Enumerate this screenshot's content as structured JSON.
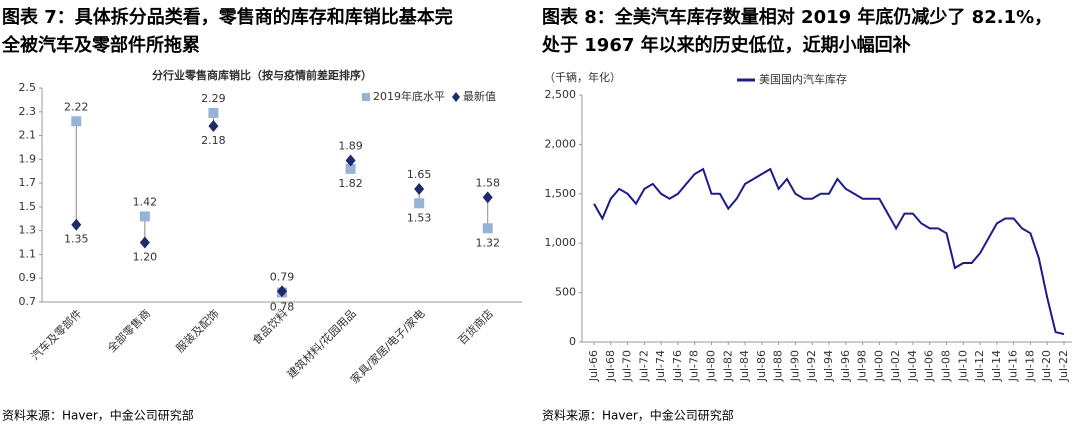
{
  "chart_data": [
    {
      "type": "dumbbell",
      "title": [
        "图表 7：具体拆分品类看，零售商的库存和库销比基本完",
        "全被汽车及零部件所拖累"
      ],
      "subtitle": "分行业零售商库销比（按与疫情前差距排序）",
      "source": "资料来源：Haver，中金公司研究部",
      "categories": [
        "汽车及零部件",
        "全部零售商",
        "服装及配饰",
        "食品饮料",
        "建筑材料/花园用品",
        "家具/家居/电子/家电",
        "百货商店"
      ],
      "series": [
        {
          "name": "2019年底水平",
          "color": "#95b3d7",
          "marker": "square",
          "values": [
            2.22,
            1.42,
            2.29,
            0.78,
            1.82,
            1.53,
            1.32
          ],
          "value_labels": [
            "2.22",
            "1.42",
            "2.29",
            "0.78",
            "1.82",
            "1.53",
            "1.32"
          ]
        },
        {
          "name": "最新值",
          "color": "#1f2a6b",
          "marker": "diamond",
          "values": [
            1.35,
            1.2,
            2.18,
            0.79,
            1.89,
            1.65,
            1.58
          ],
          "value_labels": [
            "1.35",
            "1.20",
            "2.18",
            "0.79",
            "1.89",
            "1.65",
            "1.58"
          ]
        }
      ],
      "ylim": [
        0.7,
        2.5
      ],
      "yticks": [
        0.7,
        0.9,
        1.1,
        1.3,
        1.5,
        1.7,
        1.9,
        2.1,
        2.3,
        2.5
      ],
      "legend": "top-right"
    },
    {
      "type": "line",
      "title": [
        "图表 8：全美汽车库存数量相对 2019 年底仍减少了 82.1%，",
        "处于 1967 年以来的历史低位，近期小幅回补"
      ],
      "source": "资料来源：Haver，中金公司研究部",
      "ylabel": "（千辆，年化）",
      "x": [
        "Jul-66",
        null,
        "Jul-68",
        null,
        "Jul-70",
        null,
        "Jul-72",
        null,
        "Jul-74",
        null,
        "Jul-76",
        null,
        "Jul-78",
        null,
        "Jul-80",
        null,
        "Jul-82",
        null,
        "Jul-84",
        null,
        "Jul-86",
        null,
        "Jul-88",
        null,
        "Jul-90",
        null,
        "Jul-92",
        null,
        "Jul-94",
        null,
        "Jul-96",
        null,
        "Jul-98",
        null,
        "Jul-00",
        null,
        "Jul-02",
        null,
        "Jul-04",
        null,
        "Jul-06",
        null,
        "Jul-08",
        null,
        "Jul-10",
        null,
        "Jul-12",
        null,
        "Jul-14",
        null,
        "Jul-16",
        null,
        "Jul-18",
        null,
        "Jul-20",
        null,
        "Jul-22"
      ],
      "series": [
        {
          "name": "美国国内汽车库存",
          "color": "#1c1c8a",
          "values": [
            1400,
            1250,
            1450,
            1550,
            1500,
            1400,
            1550,
            1600,
            1500,
            1450,
            1500,
            1600,
            1700,
            1750,
            1500,
            1500,
            1350,
            1450,
            1600,
            1650,
            1700,
            1750,
            1550,
            1650,
            1500,
            1450,
            1450,
            1500,
            1500,
            1650,
            1550,
            1500,
            1450,
            1450,
            1450,
            1300,
            1150,
            1300,
            1300,
            1200,
            1150,
            1150,
            1100,
            750,
            800,
            800,
            900,
            1050,
            1200,
            1250,
            1250,
            1150,
            1100,
            850,
            450,
            100,
            80
          ]
        }
      ],
      "ylim": [
        0,
        2500
      ],
      "yticks": [
        0,
        500,
        {
          "value": 1000,
          "label": "1,000"
        },
        {
          "value": 1500,
          "label": "1,500"
        },
        {
          "value": 2000,
          "label": "2,000"
        },
        {
          "value": 2500,
          "label": "2,500"
        }
      ],
      "legend": "top-center"
    }
  ]
}
